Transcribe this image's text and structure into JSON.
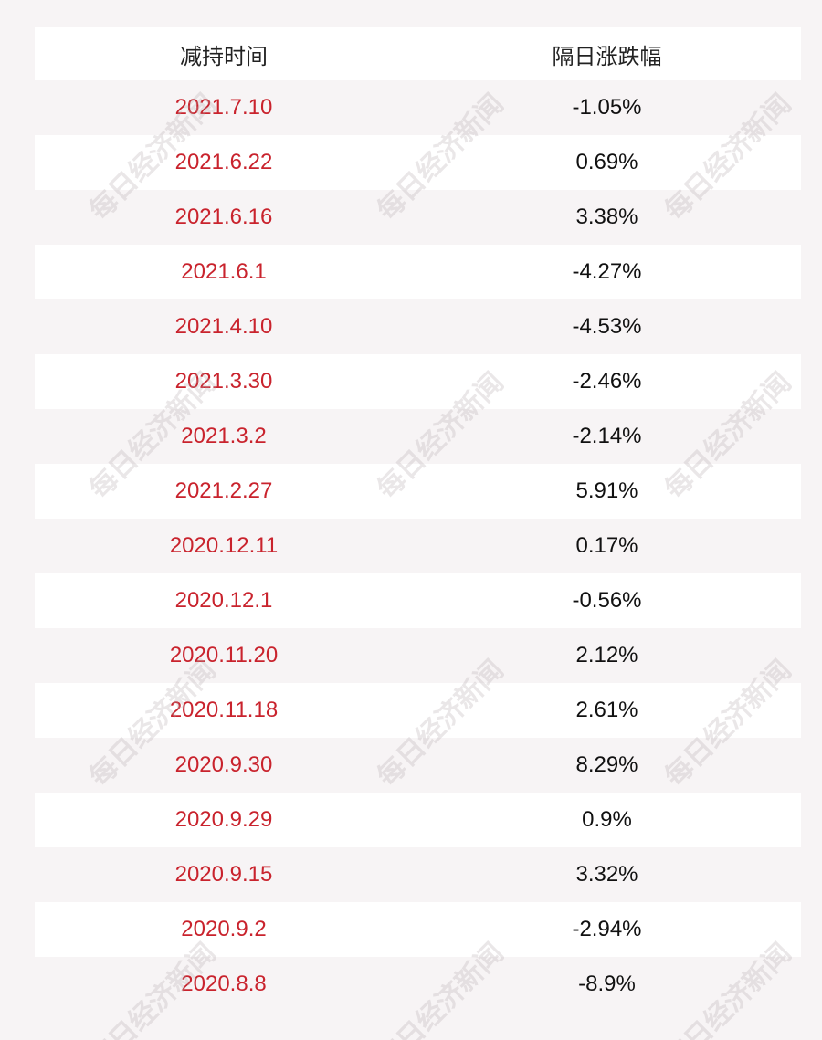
{
  "table": {
    "header": [
      "减持时间",
      "隔日涨跌幅"
    ],
    "rows": [
      [
        "2021.7.10",
        "-1.05%"
      ],
      [
        "2021.6.22",
        "0.69%"
      ],
      [
        "2021.6.16",
        "3.38%"
      ],
      [
        "2021.6.1",
        "-4.27%"
      ],
      [
        "2021.4.10",
        "-4.53%"
      ],
      [
        "2021.3.30",
        "-2.46%"
      ],
      [
        "2021.3.2",
        "-2.14%"
      ],
      [
        "2021.2.27",
        "5.91%"
      ],
      [
        "2020.12.11",
        "0.17%"
      ],
      [
        "2020.12.1",
        "-0.56%"
      ],
      [
        "2020.11.20",
        "2.12%"
      ],
      [
        "2020.11.18",
        "2.61%"
      ],
      [
        "2020.9.30",
        "8.29%"
      ],
      [
        "2020.9.29",
        "0.9%"
      ],
      [
        "2020.9.15",
        "3.32%"
      ],
      [
        "2020.9.2",
        "-2.94%"
      ],
      [
        "2020.8.8",
        "-8.9%"
      ]
    ]
  },
  "watermark": "每日经济新闻"
}
